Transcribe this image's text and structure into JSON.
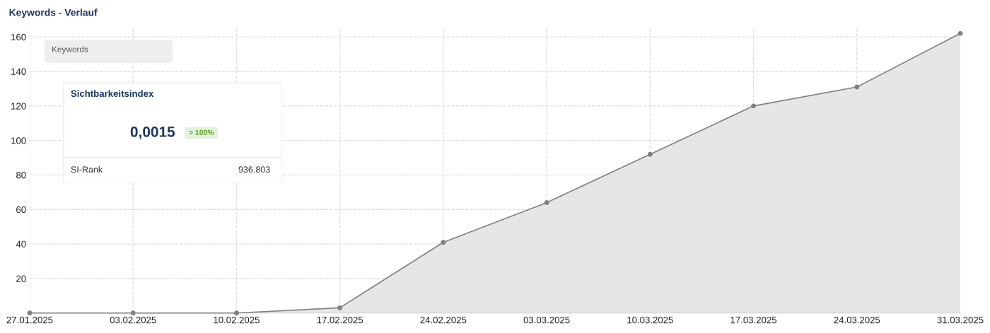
{
  "chart_data": {
    "type": "area",
    "title": "Keywords - Verlauf",
    "x": [
      "2025-01-27",
      "2025-02-03",
      "2025-02-10",
      "2025-02-17",
      "2025-02-24",
      "2025-03-03",
      "2025-03-10",
      "2025-03-17",
      "2025-03-24",
      "2025-03-31"
    ],
    "series": [
      {
        "color": "#808080",
        "values": [
          0,
          0,
          0,
          3,
          41,
          64,
          92,
          120,
          131,
          162
        ]
      }
    ],
    "xlim": [
      "2025-01-27",
      "2025-03-31"
    ],
    "xticks": [
      {
        "value": "2025-01-27",
        "label": "27.01.2025"
      },
      {
        "value": "2025-02-03",
        "label": "03.02.2025"
      },
      {
        "value": "2025-02-10",
        "label": "10.02.2025"
      },
      {
        "value": "2025-02-17",
        "label": "17.02.2025"
      },
      {
        "value": "2025-02-24",
        "label": "24.02.2025"
      },
      {
        "value": "2025-03-03",
        "label": "03.03.2025"
      },
      {
        "value": "2025-03-10",
        "label": "10.03.2025"
      },
      {
        "value": "2025-03-17",
        "label": "17.03.2025"
      },
      {
        "value": "2025-03-24",
        "label": "24.03.2025"
      },
      {
        "value": "2025-03-31",
        "label": "31.03.2025"
      }
    ],
    "ylim": [
      0,
      165
    ],
    "yticks": [
      20,
      40,
      60,
      80,
      100,
      120,
      140,
      160
    ],
    "grid": true,
    "marker": "circle",
    "line_style": "solid",
    "annotations": [
      "Keywords",
      "Sichtbarkeitsindex",
      "0,0015",
      "> 100%",
      "SI-Rank",
      "936.803"
    ]
  }
}
